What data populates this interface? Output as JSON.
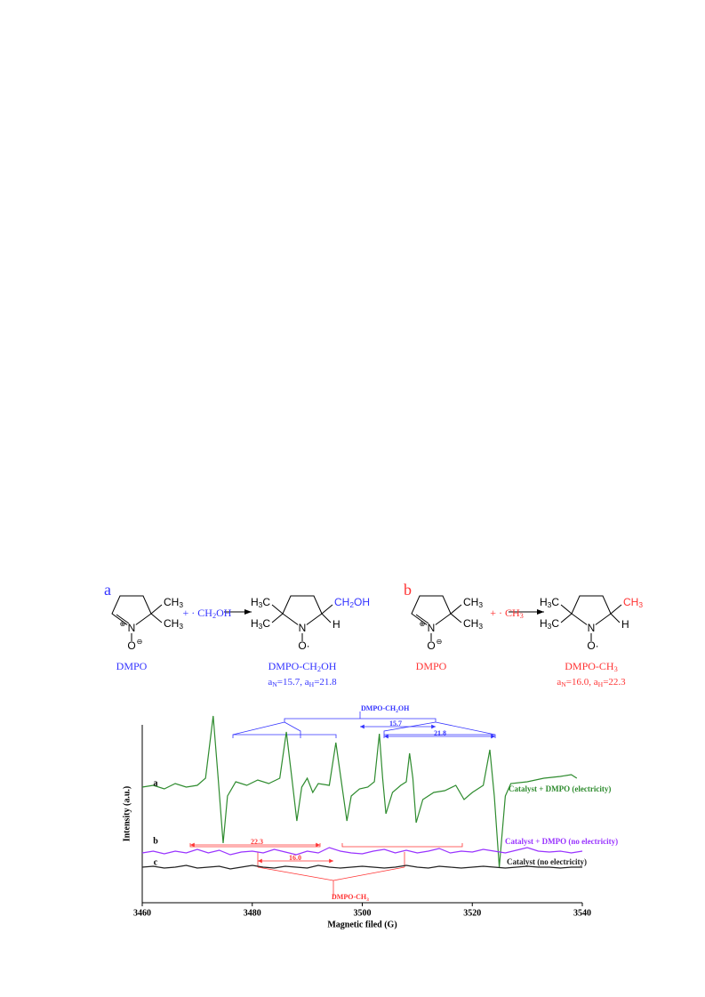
{
  "scheme": {
    "a": {
      "label": "a",
      "color": "#3333ff",
      "reactant": {
        "groups": [
          [
            "CH",
            "3"
          ],
          [
            "CH",
            "3"
          ]
        ],
        "n": "N",
        "n_charge": "⊕",
        "o": "O",
        "o_charge": "⊖",
        "name": "DMPO"
      },
      "radical": [
        "+ · CH",
        "2",
        "OH"
      ],
      "adduct": {
        "left_groups": [
          [
            "H",
            "3",
            "C"
          ],
          [
            "H",
            "3",
            "C"
          ]
        ],
        "substituent": [
          "CH",
          "2",
          "OH"
        ],
        "h": "H",
        "n": "N",
        "o": "O·",
        "name": [
          "DMPO-CH",
          "2",
          "OH"
        ],
        "hfc": [
          "a",
          "N",
          "=15.7, a",
          "H",
          "=21.8"
        ]
      }
    },
    "b": {
      "label": "b",
      "color": "#ff3333",
      "reactant": {
        "groups": [
          [
            "CH",
            "3"
          ],
          [
            "CH",
            "3"
          ]
        ],
        "n": "N",
        "n_charge": "⊕",
        "o": "O",
        "o_charge": "⊖",
        "name": "DMPO"
      },
      "radical": [
        "+ · CH",
        "3"
      ],
      "adduct": {
        "left_groups": [
          [
            "H",
            "3",
            "C"
          ],
          [
            "H",
            "3",
            "C"
          ]
        ],
        "substituent": [
          "CH",
          "3"
        ],
        "h": "H",
        "n": "N",
        "o": "O·",
        "name": [
          "DMPO-CH",
          "3"
        ],
        "hfc": [
          "a",
          "N",
          "=16.0, a",
          "H",
          "=22.3"
        ]
      }
    }
  },
  "chart_data": {
    "type": "line",
    "xlabel": "Magnetic filed (G)",
    "ylabel": "Intensity (a.u.)",
    "xlim": [
      3460,
      3540
    ],
    "xticks": [
      3460,
      3480,
      3500,
      3520,
      3540
    ],
    "ylim": [
      0,
      110
    ],
    "series": [
      {
        "name": "Catalyst + DMPO (electricity)",
        "label": "a",
        "color": "#2e8b2e",
        "x": [
          3460,
          3462,
          3464,
          3466,
          3468,
          3470,
          3471.5,
          3472.9,
          3473.8,
          3474.7,
          3475.5,
          3477,
          3479,
          3481,
          3483,
          3485,
          3486.2,
          3487.2,
          3488.1,
          3489,
          3490,
          3491,
          3492,
          3494,
          3495.2,
          3496.2,
          3497.2,
          3498,
          3499.5,
          3501,
          3502.2,
          3503.1,
          3503.7,
          3504.3,
          3505.5,
          3507,
          3508,
          3508.6,
          3509.2,
          3509.8,
          3511,
          3513,
          3515,
          3517,
          3518.5,
          3520,
          3522,
          3523.2,
          3524,
          3524.9,
          3526,
          3527,
          3530,
          3533,
          3536,
          3538,
          3539
        ],
        "values": [
          65,
          66,
          64,
          67,
          65,
          66,
          70,
          105,
          70,
          33.5,
          60,
          68,
          66,
          69,
          67,
          70,
          96,
          70,
          46,
          65,
          70,
          62,
          67,
          66,
          90,
          68,
          46,
          60,
          64,
          65,
          68,
          95,
          70,
          50,
          62,
          66,
          68,
          84,
          70,
          45,
          58,
          62,
          63,
          66,
          58,
          62,
          66,
          86,
          60,
          20,
          60,
          67,
          68,
          70,
          71,
          72,
          70
        ]
      },
      {
        "name": "Catalyst + DMPO (no electricity)",
        "label": "b",
        "color": "#9933ff",
        "x": [
          3460,
          3462,
          3464,
          3466,
          3468,
          3470,
          3472,
          3474,
          3476,
          3478,
          3480,
          3482,
          3484,
          3486,
          3488,
          3490,
          3492,
          3494,
          3496,
          3498,
          3500,
          3502,
          3504,
          3506,
          3508,
          3510,
          3512,
          3514,
          3516,
          3518,
          3520,
          3522,
          3524,
          3526,
          3528,
          3530,
          3532,
          3534,
          3536,
          3538,
          3540
        ],
        "values": [
          28,
          29,
          27.5,
          29,
          28,
          30,
          28,
          29.5,
          27,
          28.5,
          29,
          28,
          30,
          28.5,
          27,
          29,
          28,
          31,
          29,
          28,
          27.5,
          29,
          30,
          28,
          29.5,
          28,
          29,
          30.5,
          28,
          29,
          28.5,
          30,
          29,
          28,
          29.5,
          31,
          29,
          28.5,
          29,
          28,
          29
        ]
      },
      {
        "name": "Catalyst (no electricity)",
        "label": "c",
        "color": "#222222",
        "x": [
          3460,
          3462,
          3464,
          3466,
          3468,
          3470,
          3472,
          3474,
          3476,
          3478,
          3480,
          3482,
          3484,
          3486,
          3488,
          3490,
          3492,
          3494,
          3496,
          3498,
          3500,
          3502,
          3504,
          3506,
          3508,
          3510,
          3512,
          3514,
          3516,
          3518,
          3520,
          3522,
          3524,
          3526,
          3528,
          3530,
          3532,
          3534,
          3536,
          3538,
          3540
        ],
        "values": [
          20,
          20.5,
          19.5,
          20,
          21,
          19.5,
          20,
          20.5,
          19,
          20,
          21,
          20,
          19.5,
          20.5,
          20,
          19.5,
          21,
          20,
          19.5,
          20,
          20.5,
          20,
          19.5,
          20,
          21,
          20,
          19.5,
          20.5,
          20,
          19.5,
          20,
          20.5,
          20,
          19.5,
          20,
          20.5,
          20,
          20,
          19.5,
          20,
          20
        ]
      }
    ],
    "annotations": {
      "ch2oh": {
        "name": [
          "DMPO-CH",
          "2",
          "OH"
        ],
        "an": "15.7",
        "ah": "21.8"
      },
      "ch3": {
        "name": [
          "DMPO-CH",
          "3"
        ],
        "ah": "22.3",
        "an": "16.0"
      }
    }
  }
}
